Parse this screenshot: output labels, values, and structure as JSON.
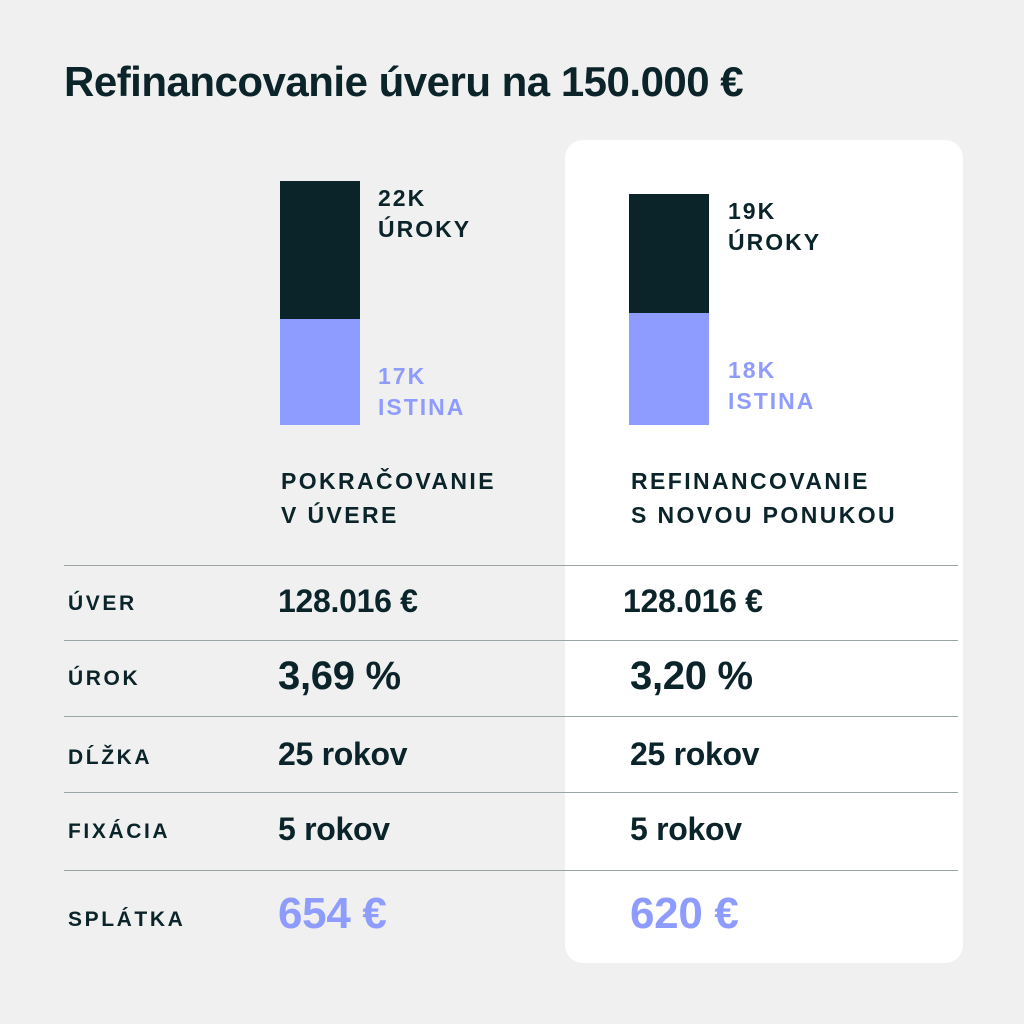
{
  "title": "Refinancovanie úveru na 150.000 €",
  "colors": {
    "dark": "#0a242a",
    "accent": "#8f9cff",
    "background": "#f0f0f0",
    "card": "#ffffff"
  },
  "chart_data": {
    "type": "bar",
    "stacked": true,
    "categories": [
      "POKRAČOVANIE V ÚVERE",
      "REFINANCOVANIE S NOVOU PONUKOU"
    ],
    "series": [
      {
        "name": "ISTINA",
        "values": [
          17,
          18
        ],
        "labels": [
          "17K",
          "18K"
        ],
        "color": "#8f9cff"
      },
      {
        "name": "ÚROKY",
        "values": [
          22,
          19
        ],
        "labels": [
          "22K",
          "19K"
        ],
        "color": "#0a242a"
      }
    ],
    "unit": "K",
    "legend": "inline labels beside bars",
    "grid": false
  },
  "columns": [
    {
      "head_line1": "POKRAČOVANIE",
      "head_line2": "V ÚVERE"
    },
    {
      "head_line1": "REFINANCOVANIE",
      "head_line2": "S NOVOU PONUKOU"
    }
  ],
  "table": {
    "rows": [
      {
        "label": "ÚVER",
        "values": [
          "128.016 €",
          "128.016 €"
        ]
      },
      {
        "label": "ÚROK",
        "values": [
          "3,69 %",
          "3,20 %"
        ]
      },
      {
        "label": "DĹŽKA",
        "values": [
          "25 rokov",
          "25 rokov"
        ]
      },
      {
        "label": "FIXÁCIA",
        "values": [
          "5 rokov",
          "5 rokov"
        ]
      },
      {
        "label": "SPLÁTKA",
        "values": [
          "654 €",
          "620 €"
        ]
      }
    ]
  }
}
